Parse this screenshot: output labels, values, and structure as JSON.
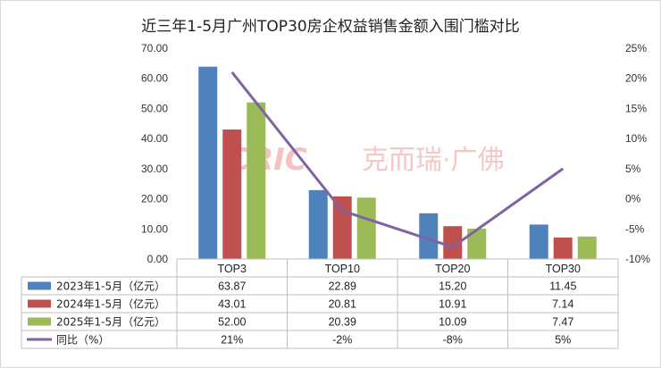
{
  "chart_data": {
    "type": "bar",
    "title": "近三年1-5月广州TOP30房企权益销售金额入围门槛对比",
    "categories": [
      "TOP3",
      "TOP10",
      "TOP20",
      "TOP30"
    ],
    "series": [
      {
        "name": "2023年1-5月（亿元）",
        "type": "bar",
        "axis": "left",
        "color": "#4F81BD",
        "values": [
          63.87,
          22.89,
          15.2,
          11.45
        ],
        "labels": [
          "63.87",
          "22.89",
          "15.20",
          "11.45"
        ]
      },
      {
        "name": "2024年1-5月（亿元）",
        "type": "bar",
        "axis": "left",
        "color": "#C0504D",
        "values": [
          43.01,
          20.81,
          10.91,
          7.14
        ],
        "labels": [
          "43.01",
          "20.81",
          "10.91",
          "7.14"
        ]
      },
      {
        "name": "2025年1-5月（亿元）",
        "type": "bar",
        "axis": "left",
        "color": "#9BBB59",
        "values": [
          52.0,
          20.39,
          10.09,
          7.47
        ],
        "labels": [
          "52.00",
          "20.39",
          "10.09",
          "7.47"
        ]
      },
      {
        "name": "同比（%）",
        "type": "line",
        "axis": "right",
        "color": "#8064A2",
        "values": [
          21,
          -2,
          -8,
          5
        ],
        "labels": [
          "21%",
          "-2%",
          "-8%",
          "5%"
        ]
      }
    ],
    "left_axis": {
      "ylim": [
        0,
        70
      ],
      "ticks": [
        "0.00",
        "10.00",
        "20.00",
        "30.00",
        "40.00",
        "50.00",
        "60.00",
        "70.00"
      ]
    },
    "right_axis": {
      "ylim": [
        -10,
        25
      ],
      "ticks": [
        "-10%",
        "-5%",
        "0%",
        "5%",
        "10%",
        "15%",
        "20%",
        "25%"
      ]
    },
    "legend": "data-table",
    "grid": false
  },
  "watermark": {
    "logo": "CRIC",
    "text": "克而瑞·广佛"
  }
}
